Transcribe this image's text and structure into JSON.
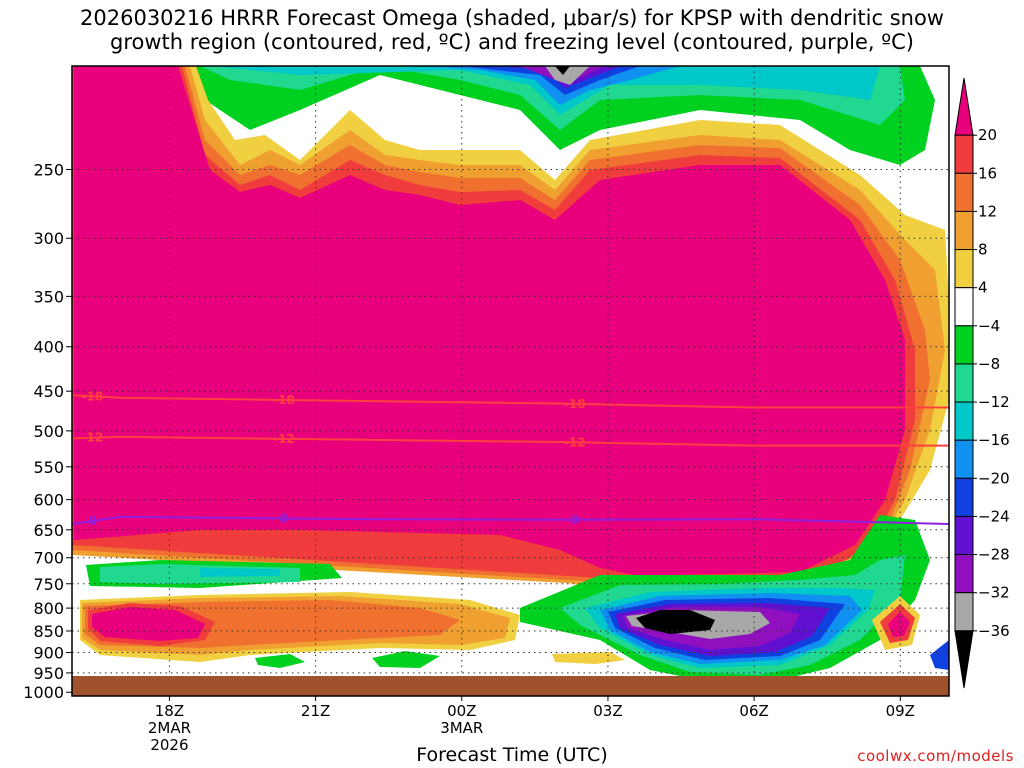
{
  "title_line1": "2026030216 HRRR Forecast Omega (shaded, μbar/s) for KPSP with dendritic snow",
  "title_line2": "growth region (contoured, red, ºC) and freezing level (contoured, purple, ºC)",
  "credit": "coolwx.com/models",
  "chart_data": {
    "type": "heatmap",
    "title": "2026030216 HRRR Forecast Omega (shaded, μbar/s) for KPSP with dendritic snow growth region (contoured, red, ºC) and freezing level (contoured, purple, ºC)",
    "xlabel": "Forecast Time (UTC)",
    "ylabel": "",
    "x_range_hours": [
      16,
      34
    ],
    "y_range_hPa": [
      1010,
      190
    ],
    "y_scale": "log-pressure",
    "grid": "dotted",
    "y_ticks": [
      250,
      300,
      350,
      400,
      450,
      500,
      550,
      600,
      650,
      700,
      750,
      800,
      850,
      900,
      950,
      1000
    ],
    "x_ticks": [
      {
        "h": 18,
        "lines": [
          "18Z",
          "2MAR",
          "2026"
        ]
      },
      {
        "h": 21,
        "lines": [
          "21Z"
        ]
      },
      {
        "h": 24,
        "lines": [
          "00Z",
          "3MAR"
        ]
      },
      {
        "h": 27,
        "lines": [
          "03Z"
        ]
      },
      {
        "h": 30,
        "lines": [
          "06Z"
        ]
      },
      {
        "h": 33,
        "lines": [
          "09Z"
        ]
      }
    ],
    "colorbar": {
      "unit": "μbar/s",
      "labels": [
        "20",
        "16",
        "12",
        "8",
        "4",
        "−4",
        "−8",
        "−12",
        "−16",
        "−20",
        "−24",
        "−28",
        "−32",
        "−36"
      ],
      "colors": [
        "#e8007c",
        "#f03c3c",
        "#f07030",
        "#f0a030",
        "#f0d040",
        "#ffffff",
        "#00d020",
        "#20d890",
        "#00c8c8",
        "#1090f0",
        "#1040e0",
        "#6010d0",
        "#9010c0",
        "#a8a8a8",
        "#000000"
      ]
    },
    "omega_regions": [
      {
        "value": 20,
        "desc": "strong ascent",
        "x": [
          16,
          33.6
        ],
        "p": [
          190,
          790
        ]
      },
      {
        "value": 8,
        "desc": "low-level ascent",
        "x": [
          16,
          21
        ],
        "p": [
          830,
          950
        ]
      },
      {
        "value": -36,
        "desc": "strong descent core",
        "x": [
          28,
          30
        ],
        "p": [
          860,
          900
        ]
      }
    ],
    "contours": [
      {
        "name": "-18",
        "color": "#ff4040",
        "p": [
          455,
          458,
          460,
          462,
          465,
          470,
          470
        ]
      },
      {
        "name": "-12",
        "color": "#ff4040",
        "p": [
          510,
          508,
          510,
          512,
          515,
          520,
          520
        ]
      },
      {
        "name": "0",
        "color": "#9020e0",
        "p": [
          640,
          628,
          630,
          632,
          633,
          632,
          640
        ]
      }
    ],
    "contour_x": [
      16,
      17,
      19.5,
      22,
      26,
      30,
      34
    ]
  }
}
